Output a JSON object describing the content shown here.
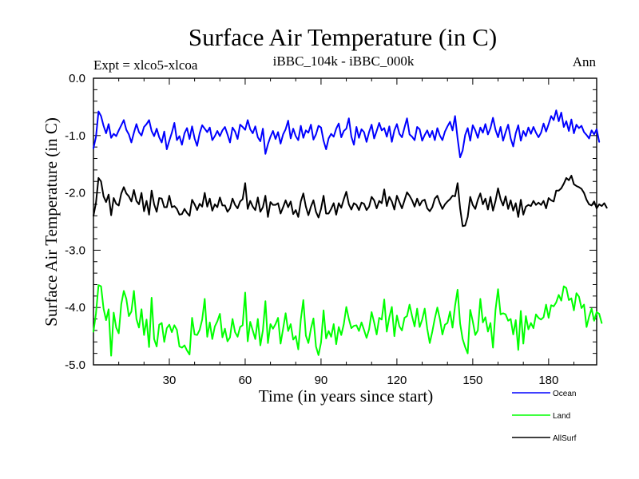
{
  "chart_data": {
    "type": "line",
    "title": "Surface Air Temperature (in C)",
    "subtitle_left": "Expt = xlco5-xlcoa",
    "subtitle_center": "iBBC_104k - iBBC_000k",
    "subtitle_right": "Ann",
    "xlabel": "Time (in years since start)",
    "ylabel": "Surface Air Temperature (in C)",
    "xlim": [
      0,
      199
    ],
    "ylim": [
      -5.0,
      0.0
    ],
    "x_ticks": [
      30,
      60,
      90,
      120,
      150,
      180
    ],
    "y_ticks": [
      0.0,
      -1.0,
      -2.0,
      -3.0,
      -4.0,
      -5.0
    ],
    "y_tick_labels": [
      "0.0",
      "-1.0",
      "-2.0",
      "-3.0",
      "-4.0",
      "-5.0"
    ],
    "x_start": 0,
    "x_step": 1,
    "series": [
      {
        "name": "Ocean",
        "color": "#0000ff",
        "values": [
          -1.22,
          -1.02,
          -0.58,
          -0.66,
          -0.83,
          -0.96,
          -0.8,
          -1.04,
          -0.97,
          -1.01,
          -0.91,
          -0.82,
          -0.73,
          -0.9,
          -0.98,
          -1.12,
          -0.95,
          -0.8,
          -0.94,
          -1.0,
          -0.85,
          -0.8,
          -0.73,
          -0.92,
          -1.01,
          -0.88,
          -1.03,
          -1.12,
          -0.93,
          -1.24,
          -1.09,
          -0.95,
          -0.78,
          -1.08,
          -1.01,
          -1.16,
          -0.96,
          -0.87,
          -1.06,
          -0.84,
          -1.05,
          -1.18,
          -0.96,
          -0.82,
          -0.88,
          -0.94,
          -0.86,
          -1.08,
          -1.01,
          -0.92,
          -1.01,
          -0.91,
          -0.85,
          -0.98,
          -1.12,
          -0.86,
          -0.93,
          -1.06,
          -0.81,
          -0.85,
          -0.9,
          -0.73,
          -0.89,
          -0.96,
          -0.84,
          -1.03,
          -1.1,
          -0.88,
          -1.32,
          -1.15,
          -1.02,
          -0.92,
          -1.06,
          -0.94,
          -1.14,
          -0.98,
          -0.89,
          -0.74,
          -1.05,
          -0.88,
          -1.01,
          -1.08,
          -0.83,
          -1.04,
          -0.91,
          -0.95,
          -0.81,
          -1.07,
          -0.98,
          -0.83,
          -0.86,
          -1.09,
          -1.24,
          -1.05,
          -0.97,
          -1.02,
          -0.88,
          -0.79,
          -1.03,
          -0.92,
          -0.88,
          -0.7,
          -1.02,
          -1.16,
          -0.85,
          -1.04,
          -0.89,
          -0.94,
          -1.11,
          -0.94,
          -0.81,
          -1.05,
          -0.92,
          -0.78,
          -0.91,
          -0.87,
          -1.02,
          -0.84,
          -1.11,
          -0.91,
          -0.8,
          -0.97,
          -1.03,
          -0.86,
          -0.7,
          -0.98,
          -1.02,
          -1.08,
          -0.85,
          -0.89,
          -1.09,
          -0.99,
          -0.91,
          -1.03,
          -0.92,
          -1.08,
          -0.87,
          -1.0,
          -1.08,
          -0.93,
          -0.84,
          -0.76,
          -0.91,
          -0.66,
          -1.05,
          -1.38,
          -1.26,
          -0.99,
          -0.87,
          -1.09,
          -0.82,
          -0.91,
          -1.04,
          -0.86,
          -0.95,
          -0.8,
          -0.98,
          -0.87,
          -0.69,
          -0.9,
          -1.03,
          -0.85,
          -1.09,
          -0.94,
          -0.81,
          -1.05,
          -1.19,
          -0.96,
          -0.82,
          -1.09,
          -0.92,
          -1.01,
          -0.86,
          -0.97,
          -0.85,
          -0.95,
          -1.03,
          -0.95,
          -0.79,
          -0.93,
          -0.8,
          -0.66,
          -0.73,
          -0.56,
          -0.75,
          -0.6,
          -0.85,
          -0.75,
          -0.92,
          -0.72,
          -0.96,
          -0.81,
          -0.87,
          -0.83,
          -0.94,
          -0.99,
          -1.05,
          -0.91,
          -0.98,
          -0.89,
          -1.11
        ]
      },
      {
        "name": "Land",
        "color": "#00ff00",
        "values": [
          -4.42,
          -4.1,
          -3.61,
          -3.63,
          -4.02,
          -4.22,
          -4.03,
          -4.84,
          -4.09,
          -4.35,
          -4.45,
          -3.94,
          -3.71,
          -3.85,
          -4.15,
          -4.07,
          -3.71,
          -4.2,
          -4.35,
          -4.03,
          -4.48,
          -4.21,
          -4.69,
          -3.83,
          -4.55,
          -4.68,
          -4.3,
          -4.27,
          -4.6,
          -4.36,
          -4.3,
          -4.43,
          -4.31,
          -4.39,
          -4.68,
          -4.7,
          -4.66,
          -4.75,
          -4.82,
          -4.18,
          -4.47,
          -4.48,
          -4.39,
          -4.21,
          -3.85,
          -4.51,
          -4.26,
          -4.55,
          -4.33,
          -4.24,
          -4.11,
          -4.52,
          -4.37,
          -4.59,
          -4.52,
          -4.2,
          -4.43,
          -4.51,
          -4.34,
          -4.31,
          -3.74,
          -4.59,
          -4.25,
          -4.4,
          -4.55,
          -4.2,
          -4.66,
          -4.4,
          -3.89,
          -4.62,
          -4.29,
          -4.37,
          -4.29,
          -4.18,
          -4.63,
          -4.37,
          -4.1,
          -4.41,
          -4.29,
          -4.56,
          -4.5,
          -4.73,
          -4.21,
          -3.87,
          -4.49,
          -4.62,
          -4.37,
          -4.19,
          -4.68,
          -4.83,
          -4.61,
          -4.05,
          -4.54,
          -4.41,
          -4.51,
          -4.29,
          -4.64,
          -4.34,
          -4.48,
          -4.29,
          -3.99,
          -4.2,
          -4.36,
          -4.32,
          -4.31,
          -4.41,
          -4.26,
          -4.39,
          -4.53,
          -4.38,
          -4.08,
          -4.26,
          -4.47,
          -4.18,
          -4.21,
          -3.86,
          -4.42,
          -4.17,
          -3.99,
          -4.5,
          -4.14,
          -4.33,
          -4.4,
          -4.18,
          -4.15,
          -3.95,
          -4.15,
          -4.33,
          -4.02,
          -4.34,
          -4.21,
          -4.02,
          -4.37,
          -4.62,
          -4.42,
          -4.19,
          -4.0,
          -4.2,
          -4.47,
          -4.3,
          -4.27,
          -4.07,
          -4.35,
          -3.97,
          -3.69,
          -4.28,
          -4.55,
          -4.69,
          -4.8,
          -4.04,
          -4.24,
          -4.48,
          -4.4,
          -3.85,
          -4.26,
          -4.17,
          -4.42,
          -4.27,
          -4.7,
          -4.04,
          -3.68,
          -4.12,
          -4.1,
          -4.12,
          -4.23,
          -4.2,
          -4.47,
          -4.22,
          -4.74,
          -4.06,
          -4.63,
          -4.15,
          -4.38,
          -4.27,
          -4.36,
          -4.12,
          -4.18,
          -4.21,
          -4.17,
          -3.95,
          -4.18,
          -3.96,
          -3.98,
          -3.91,
          -3.78,
          -3.88,
          -3.63,
          -3.66,
          -3.87,
          -3.84,
          -4.05,
          -3.75,
          -3.81,
          -4.01,
          -3.95,
          -4.34,
          -4.16,
          -4.02,
          -4.23,
          -4.08,
          -4.11,
          -4.27
        ]
      },
      {
        "name": "AllSurf",
        "color": "#000000",
        "values": [
          -2.4,
          -2.17,
          -1.74,
          -1.8,
          -2.06,
          -2.16,
          -2.03,
          -2.39,
          -2.09,
          -2.19,
          -2.22,
          -2.01,
          -1.9,
          -2.01,
          -2.06,
          -2.15,
          -1.95,
          -2.14,
          -2.2,
          -2.0,
          -2.32,
          -2.14,
          -2.38,
          -1.96,
          -2.2,
          -2.33,
          -2.09,
          -2.1,
          -2.25,
          -2.25,
          -2.05,
          -2.25,
          -2.23,
          -2.28,
          -2.38,
          -2.37,
          -2.28,
          -2.35,
          -2.4,
          -2.12,
          -2.2,
          -2.3,
          -2.19,
          -2.24,
          -2.0,
          -2.24,
          -2.1,
          -2.31,
          -2.2,
          -2.25,
          -2.08,
          -2.22,
          -2.22,
          -2.33,
          -2.27,
          -2.1,
          -2.21,
          -2.27,
          -2.15,
          -2.11,
          -1.83,
          -2.28,
          -2.14,
          -2.24,
          -2.3,
          -2.08,
          -2.33,
          -2.25,
          -2.05,
          -2.42,
          -2.16,
          -2.21,
          -2.21,
          -2.18,
          -2.36,
          -2.25,
          -2.13,
          -2.25,
          -2.15,
          -2.37,
          -2.3,
          -2.42,
          -2.15,
          -2.01,
          -2.24,
          -2.39,
          -2.24,
          -2.13,
          -2.33,
          -2.43,
          -2.28,
          -2.05,
          -2.36,
          -2.36,
          -2.28,
          -2.18,
          -2.38,
          -2.18,
          -2.26,
          -2.11,
          -1.98,
          -2.2,
          -2.29,
          -2.18,
          -2.21,
          -2.3,
          -2.17,
          -2.19,
          -2.3,
          -2.24,
          -2.07,
          -2.13,
          -2.27,
          -2.14,
          -2.18,
          -1.94,
          -2.23,
          -2.07,
          -2.15,
          -2.29,
          -2.05,
          -2.16,
          -2.27,
          -2.13,
          -1.99,
          -2.05,
          -2.13,
          -2.24,
          -2.1,
          -2.22,
          -2.14,
          -2.12,
          -2.27,
          -2.32,
          -2.25,
          -2.1,
          -2.05,
          -2.18,
          -2.28,
          -2.2,
          -2.15,
          -2.11,
          -2.05,
          -2.06,
          -1.83,
          -2.27,
          -2.58,
          -2.57,
          -2.42,
          -2.07,
          -2.21,
          -2.28,
          -2.12,
          -2.01,
          -2.2,
          -2.1,
          -2.29,
          -2.07,
          -2.31,
          -2.14,
          -1.92,
          -2.11,
          -2.22,
          -2.06,
          -2.28,
          -2.13,
          -2.31,
          -2.18,
          -2.42,
          -2.12,
          -2.38,
          -2.24,
          -2.21,
          -2.23,
          -2.14,
          -2.21,
          -2.17,
          -2.21,
          -2.14,
          -2.27,
          -2.09,
          -2.13,
          -2.15,
          -1.96,
          -1.96,
          -1.92,
          -1.84,
          -1.74,
          -1.78,
          -1.7,
          -1.85,
          -1.88,
          -1.9,
          -1.93,
          -2.0,
          -2.12,
          -2.2,
          -2.22,
          -2.15,
          -2.27,
          -2.2,
          -2.23,
          -2.18,
          -2.26
        ]
      }
    ]
  }
}
